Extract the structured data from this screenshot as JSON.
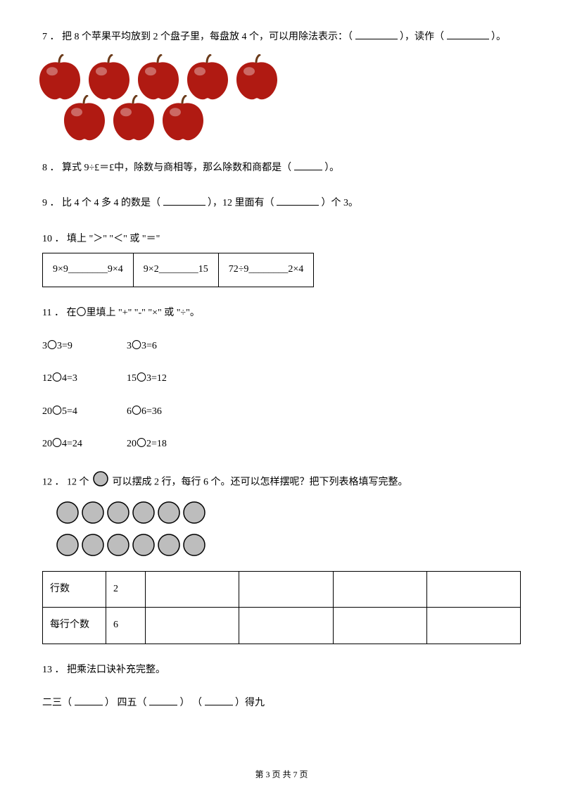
{
  "q7": {
    "text_a": "7 ． 把 8 个苹果平均放到 2 个盘子里，每盘放 4 个，可以用除法表示：（",
    "text_b": "），读作（",
    "text_c": "）。",
    "apple_color_top": "#d8563a",
    "apple_color_bottom": "#b01a12",
    "apple_highlight": "#f2a27a",
    "stem_color": "#6b3b1a",
    "apple_count_row1": 5,
    "apple_count_row2": 3
  },
  "q8": {
    "text_a": "8 ． 算式 9÷£＝£中，除数与商相等，那么除数和商都是（",
    "text_b": "）。"
  },
  "q9": {
    "text_a": "9 ． 比 4 个 4 多 4 的数是（",
    "text_b": "），12 里面有（",
    "text_c": "）个 3。"
  },
  "q10": {
    "label": "10 ． 填上 \"＞\" \"＜\" 或 \"＝\"",
    "cells": [
      "9×9________9×4",
      "9×2________15",
      "72÷9________2×4"
    ]
  },
  "q11": {
    "label": "11 ． 在〇里填上 \"+\" \"-\" \"×\" 或 \"÷\"。",
    "rows": [
      [
        "3〇3=9",
        "3〇3=6"
      ],
      [
        "12〇4=3",
        "15〇3=12"
      ],
      [
        "20〇5=4",
        "6〇6=36"
      ],
      [
        "20〇4=24",
        "20〇2=18"
      ]
    ]
  },
  "q12": {
    "text_a": "12 ． 12 个",
    "text_b": "可以摆成 2 行，每行 6 个。还可以怎样摆呢？把下列表格填写完整。",
    "circle_fill": "#bdbdbd",
    "circle_stroke": "#000000",
    "circle_rows": 2,
    "circle_cols": 6,
    "row1_label": "行数",
    "row1_val": "2",
    "row2_label": "每行个数",
    "row2_val": "6",
    "extra_cols": 4
  },
  "q13": {
    "label": "13 ． 把乘法口诀补充完整。",
    "part_a": "二三（",
    "part_b": "）   四五（",
    "part_c": "）   （",
    "part_d": "）得九"
  },
  "footer": "第 3 页 共 7 页"
}
